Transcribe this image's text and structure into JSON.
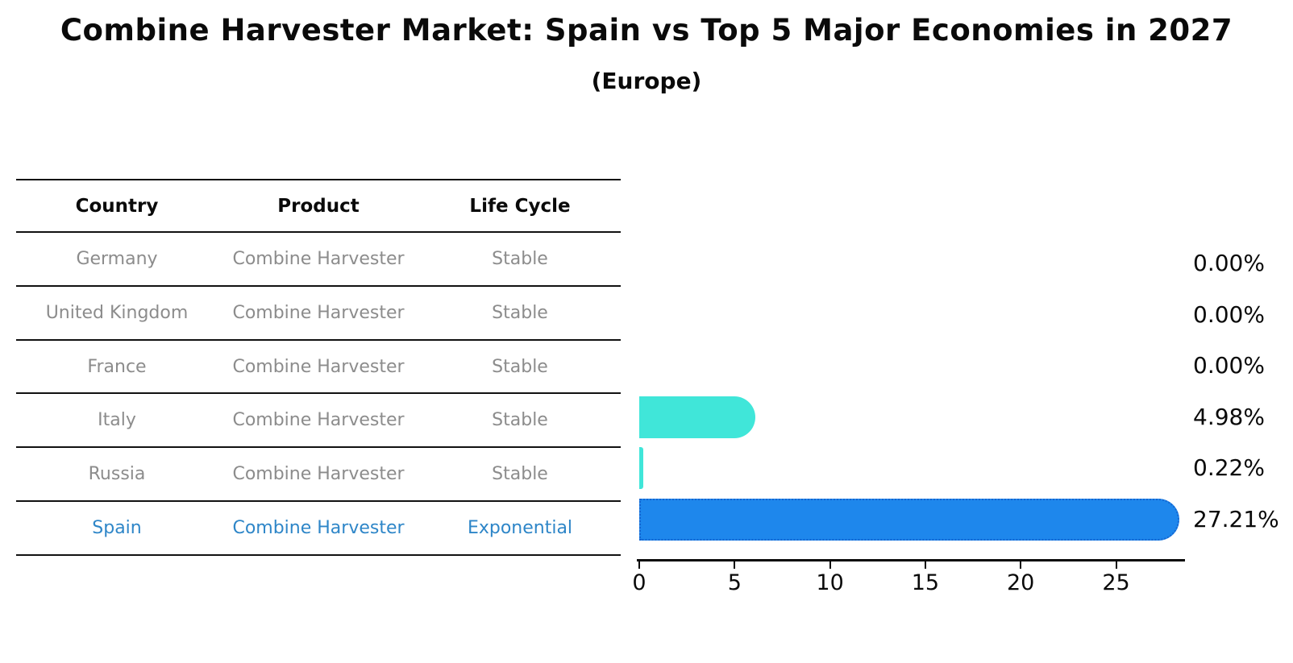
{
  "title": "Combine Harvester Market: Spain vs Top 5 Major Economies in 2027",
  "subtitle": "(Europe)",
  "table": {
    "headers": [
      "Country",
      "Product",
      "Life Cycle"
    ],
    "rows": [
      {
        "country": "Germany",
        "product": "Combine Harvester",
        "life_cycle": "Stable",
        "highlight": false
      },
      {
        "country": "United Kingdom",
        "product": "Combine Harvester",
        "life_cycle": "Stable",
        "highlight": false
      },
      {
        "country": "France",
        "product": "Combine Harvester",
        "life_cycle": "Stable",
        "highlight": false
      },
      {
        "country": "Italy",
        "product": "Combine Harvester",
        "life_cycle": "Stable",
        "highlight": false
      },
      {
        "country": "Russia",
        "product": "Combine Harvester",
        "life_cycle": "Stable",
        "highlight": false
      },
      {
        "country": "Spain",
        "product": "Combine Harvester",
        "life_cycle": "Exponential",
        "highlight": true
      }
    ]
  },
  "chart_data": {
    "type": "bar",
    "orientation": "horizontal",
    "title": "Combine Harvester Market: Spain vs Top 5 Major Economies in 2027 (Europe)",
    "categories": [
      "Germany",
      "United Kingdom",
      "France",
      "Italy",
      "Russia",
      "Spain"
    ],
    "values": [
      0.0,
      0.0,
      0.0,
      4.98,
      0.22,
      27.21
    ],
    "value_labels": [
      "0.00%",
      "0.00%",
      "0.00%",
      "4.98%",
      "0.22%",
      "27.21%"
    ],
    "highlighted_category": "Spain",
    "x_ticks": [
      0,
      5,
      10,
      15,
      20,
      25
    ],
    "xlim": [
      0,
      28.6
    ],
    "xlabel": "",
    "ylabel": "",
    "grid": false,
    "legend": "none",
    "colors": {
      "bar_default": "#40e6d9",
      "bar_highlight": "#1e87ec",
      "bar_highlight_border": "#1565d0",
      "row_text": "#8c8c8c",
      "highlight_text": "#2e86c8",
      "axis": "#0a0a0a"
    }
  }
}
